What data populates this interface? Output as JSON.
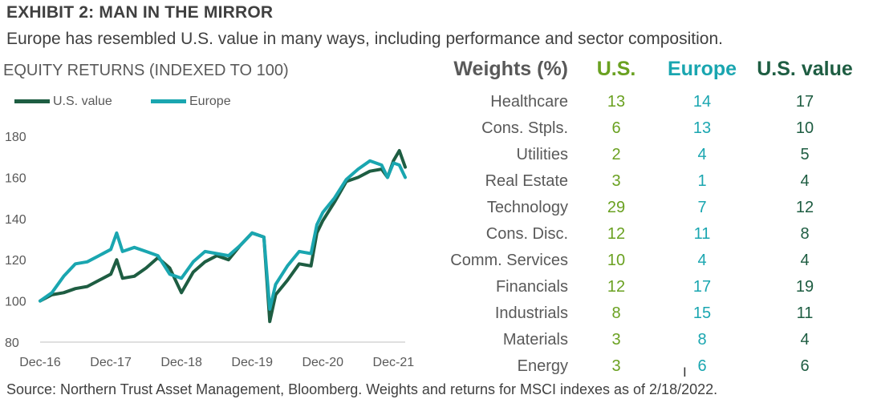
{
  "header": {
    "exhibit_title": "EXHIBIT 2: MAN IN THE MIRROR",
    "subtitle": "Europe has resembled U.S. value in many ways, including performance and sector composition."
  },
  "chart_data": {
    "type": "line",
    "title": "EQUITY RETURNS (INDEXED TO 100)",
    "x_tick_labels": [
      "Dec-16",
      "Dec-17",
      "Dec-18",
      "Dec-19",
      "Dec-20",
      "Dec-21"
    ],
    "y_tick_labels": [
      "80",
      "100",
      "120",
      "140",
      "160",
      "180"
    ],
    "ylim": [
      80,
      180
    ],
    "xlim": [
      "Dec-16",
      "Feb-22"
    ],
    "grid": false,
    "legend": "top-left",
    "x_format": "Mon-YY",
    "series": [
      {
        "name": "U.S. value",
        "color": "#1e5d42",
        "points": [
          [
            "Dec-16",
            100
          ],
          [
            "Feb-17",
            103
          ],
          [
            "Apr-17",
            104
          ],
          [
            "Jun-17",
            106
          ],
          [
            "Aug-17",
            107
          ],
          [
            "Oct-17",
            110
          ],
          [
            "Dec-17",
            113
          ],
          [
            "Jan-18",
            120
          ],
          [
            "Feb-18",
            111
          ],
          [
            "Apr-18",
            112
          ],
          [
            "Jun-18",
            116
          ],
          [
            "Aug-18",
            121
          ],
          [
            "Oct-18",
            116
          ],
          [
            "Dec-18",
            104
          ],
          [
            "Feb-19",
            114
          ],
          [
            "Apr-19",
            119
          ],
          [
            "Jun-19",
            122
          ],
          [
            "Aug-19",
            120
          ],
          [
            "Oct-19",
            127
          ],
          [
            "Dec-19",
            133
          ],
          [
            "Feb-20",
            131
          ],
          [
            "Mar-20",
            90
          ],
          [
            "Apr-20",
            103
          ],
          [
            "Jun-20",
            110
          ],
          [
            "Aug-20",
            118
          ],
          [
            "Oct-20",
            117
          ],
          [
            "Nov-20",
            133
          ],
          [
            "Dec-20",
            139
          ],
          [
            "Feb-21",
            148
          ],
          [
            "Apr-21",
            158
          ],
          [
            "Jun-21",
            160
          ],
          [
            "Aug-21",
            163
          ],
          [
            "Oct-21",
            164
          ],
          [
            "Nov-21",
            160
          ],
          [
            "Dec-21",
            168
          ],
          [
            "Jan-22",
            173
          ],
          [
            "Feb-22",
            165
          ]
        ]
      },
      {
        "name": "Europe",
        "color": "#1aa6b0",
        "points": [
          [
            "Dec-16",
            100
          ],
          [
            "Feb-17",
            104
          ],
          [
            "Apr-17",
            112
          ],
          [
            "Jun-17",
            118
          ],
          [
            "Aug-17",
            119
          ],
          [
            "Oct-17",
            122
          ],
          [
            "Dec-17",
            125
          ],
          [
            "Jan-18",
            133
          ],
          [
            "Feb-18",
            124
          ],
          [
            "Apr-18",
            126
          ],
          [
            "Jun-18",
            124
          ],
          [
            "Aug-18",
            122
          ],
          [
            "Oct-18",
            113
          ],
          [
            "Dec-18",
            111
          ],
          [
            "Feb-19",
            119
          ],
          [
            "Apr-19",
            124
          ],
          [
            "Jun-19",
            123
          ],
          [
            "Aug-19",
            122
          ],
          [
            "Oct-19",
            127
          ],
          [
            "Dec-19",
            133
          ],
          [
            "Feb-20",
            131
          ],
          [
            "Mar-20",
            96
          ],
          [
            "Apr-20",
            108
          ],
          [
            "Jun-20",
            117
          ],
          [
            "Aug-20",
            124
          ],
          [
            "Oct-20",
            123
          ],
          [
            "Nov-20",
            137
          ],
          [
            "Dec-20",
            143
          ],
          [
            "Feb-21",
            150
          ],
          [
            "Apr-21",
            159
          ],
          [
            "Jun-21",
            164
          ],
          [
            "Aug-21",
            168
          ],
          [
            "Oct-21",
            166
          ],
          [
            "Nov-21",
            160
          ],
          [
            "Dec-21",
            167
          ],
          [
            "Jan-22",
            166
          ],
          [
            "Feb-22",
            160
          ]
        ]
      }
    ]
  },
  "weights_table": {
    "header": "Weights (%)",
    "columns": [
      "U.S.",
      "Europe",
      "U.S. value"
    ],
    "column_colors": [
      "#6aa121",
      "#1aa6b0",
      "#1e5d42"
    ],
    "rows": [
      {
        "sector": "Healthcare",
        "us": "13",
        "europe": "14",
        "us_value": "17"
      },
      {
        "sector": "Cons. Stpls.",
        "us": "6",
        "europe": "13",
        "us_value": "10"
      },
      {
        "sector": "Utilities",
        "us": "2",
        "europe": "4",
        "us_value": "5"
      },
      {
        "sector": "Real Estate",
        "us": "3",
        "europe": "1",
        "us_value": "4"
      },
      {
        "sector": "Technology",
        "us": "29",
        "europe": "7",
        "us_value": "12"
      },
      {
        "sector": "Cons. Disc.",
        "us": "12",
        "europe": "11",
        "us_value": "8"
      },
      {
        "sector": "Comm. Services",
        "us": "10",
        "europe": "4",
        "us_value": "4"
      },
      {
        "sector": "Financials",
        "us": "12",
        "europe": "17",
        "us_value": "19"
      },
      {
        "sector": "Industrials",
        "us": "8",
        "europe": "15",
        "us_value": "11"
      },
      {
        "sector": "Materials",
        "us": "3",
        "europe": "8",
        "us_value": "4"
      },
      {
        "sector": "Energy",
        "us": "3",
        "europe": "6",
        "us_value": "6"
      }
    ]
  },
  "footer": {
    "source": "Source: Northern Trust Asset Management, Bloomberg. Weights and returns for MSCI indexes as of 2/18/2022."
  }
}
